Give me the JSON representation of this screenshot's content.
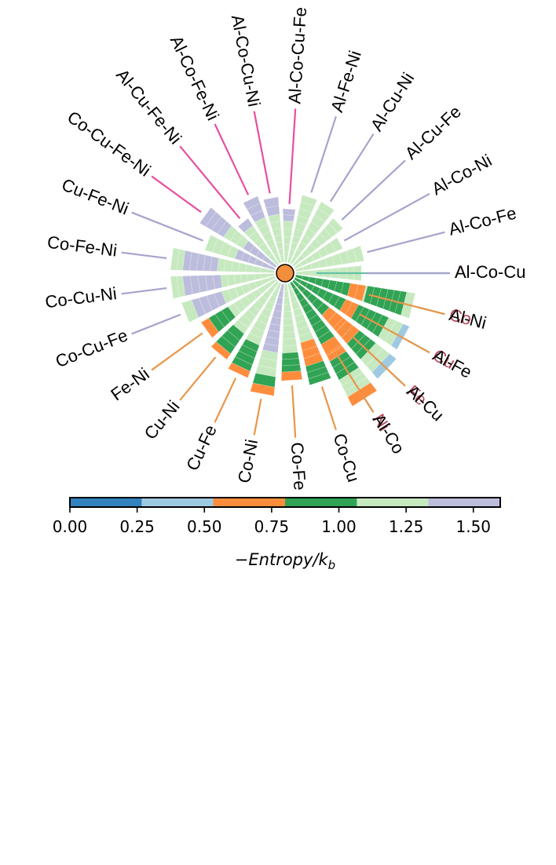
{
  "chart_data": {
    "type": "radial-stacked-bar",
    "colorbar": {
      "min": 0.0,
      "max": 1.6,
      "ticks": [
        "0.00",
        "0.25",
        "0.50",
        "0.75",
        "1.00",
        "1.25",
        "1.50"
      ],
      "tick_values": [
        0.0,
        0.25,
        0.5,
        0.75,
        1.0,
        1.25,
        1.5
      ],
      "title": "−Entropy/k",
      "title_sub": "b",
      "bins": [
        {
          "from": 0.0,
          "to": 0.267,
          "color": "#3182bd"
        },
        {
          "from": 0.267,
          "to": 0.533,
          "color": "#9ecae1"
        },
        {
          "from": 0.533,
          "to": 0.8,
          "color": "#fd8d3c"
        },
        {
          "from": 0.8,
          "to": 1.067,
          "color": "#31a354"
        },
        {
          "from": 1.067,
          "to": 1.333,
          "color": "#c7e9c0"
        },
        {
          "from": 1.333,
          "to": 1.6,
          "color": "#bcbddc"
        }
      ]
    },
    "spokes": [
      {
        "label": "Al",
        "angle": 0,
        "group": "unary",
        "segments": [
          [
            0,
            0
          ],
          [
            0.6,
            0.6
          ],
          [
            0.3,
            0
          ]
        ]
      },
      {
        "label": "Co",
        "angle": -14.4,
        "group": "unary",
        "segments": [
          [
            0,
            0
          ],
          [
            4.2,
            1.1
          ],
          [
            1.2,
            0.8
          ],
          [
            1.1,
            0.9
          ],
          [
            0.5,
            1.3
          ]
        ]
      },
      {
        "label": "Cu",
        "angle": -28.8,
        "group": "unary",
        "segments": [
          [
            0,
            0
          ],
          [
            3.2,
            1.1
          ],
          [
            1.5,
            0.8
          ],
          [
            1.2,
            0.8
          ],
          [
            0.9,
            1.3
          ],
          [
            0.4,
            0.5
          ]
        ]
      },
      {
        "label": "Fe",
        "angle": -43.2,
        "group": "unary",
        "segments": [
          [
            0,
            0
          ],
          [
            3.4,
            1.1
          ],
          [
            1.4,
            0.7
          ],
          [
            1.2,
            0.8
          ],
          [
            1.0,
            1.3
          ],
          [
            0.5,
            0.5
          ]
        ]
      },
      {
        "label": "Ni",
        "angle": -57.6,
        "group": "unary",
        "segments": [
          [
            0,
            0
          ],
          [
            3.6,
            1.1
          ],
          [
            1.5,
            0.7
          ],
          [
            1.2,
            0.8
          ],
          [
            1.1,
            1.3
          ],
          [
            0.6,
            0.6
          ]
        ]
      },
      {
        "label": "Co-Cu",
        "angle": -72.0,
        "group": "binary",
        "segments": [
          [
            0,
            0
          ],
          [
            3.5,
            1.1
          ],
          [
            1.4,
            0.7
          ],
          [
            1.1,
            0.8
          ]
        ]
      },
      {
        "label": "Co-Fe",
        "angle": -86.4,
        "group": "binary",
        "segments": [
          [
            0,
            0
          ],
          [
            4.0,
            1.2
          ],
          [
            1.1,
            0.8
          ],
          [
            0.5,
            0.6
          ]
        ]
      },
      {
        "label": "Co-Ni",
        "angle": -100.8,
        "group": "binary",
        "segments": [
          [
            0,
            0
          ],
          [
            4.0,
            1.4
          ],
          [
            1.4,
            1.1
          ],
          [
            0.6,
            0.8
          ],
          [
            0.5,
            0.6
          ]
        ]
      },
      {
        "label": "Cu-Fe",
        "angle": -115.2,
        "group": "binary",
        "segments": [
          [
            0,
            0
          ],
          [
            3.8,
            1.2
          ],
          [
            1.6,
            0.9
          ],
          [
            0.4,
            0.6
          ]
        ]
      },
      {
        "label": "Cu-Ni",
        "angle": -129.6,
        "group": "binary",
        "segments": [
          [
            0,
            0
          ],
          [
            3.6,
            1.2
          ],
          [
            1.4,
            0.9
          ],
          [
            0.4,
            0.6
          ]
        ]
      },
      {
        "label": "Fe-Ni",
        "angle": -144.0,
        "group": "binary",
        "segments": [
          [
            0,
            0
          ],
          [
            3.2,
            1.2
          ],
          [
            1.3,
            0.9
          ],
          [
            0.5,
            0.6
          ]
        ]
      },
      {
        "label": "Co-Cu-Fe",
        "angle": -158.4,
        "group": "ternary",
        "segments": [
          [
            0,
            0
          ],
          [
            3.2,
            1.2
          ],
          [
            1.8,
            1.4
          ],
          [
            0.6,
            1.2
          ]
        ]
      },
      {
        "label": "Co-Cu-Ni",
        "angle": -172.8,
        "group": "ternary",
        "segments": [
          [
            0,
            0
          ],
          [
            3.1,
            1.2
          ],
          [
            2.2,
            1.4
          ],
          [
            0.7,
            1.2
          ]
        ]
      },
      {
        "label": "Co-Fe-Ni",
        "angle": -187.2,
        "group": "ternary",
        "segments": [
          [
            0,
            0
          ],
          [
            3.3,
            1.2
          ],
          [
            2.0,
            1.4
          ],
          [
            0.7,
            1.2
          ]
        ]
      },
      {
        "label": "Cu-Fe-Ni",
        "angle": -201.6,
        "group": "ternary",
        "segments": [
          [
            0,
            0
          ],
          [
            2.4,
            1.4
          ],
          [
            1.8,
            1.2
          ]
        ]
      },
      {
        "label": "Co-Cu-Fe-Ni",
        "angle": -216.0,
        "group": "quaternary",
        "segments": [
          [
            0,
            0
          ],
          [
            2.2,
            1.4
          ],
          [
            1.3,
            1.2
          ],
          [
            1.6,
            1.4
          ]
        ]
      },
      {
        "label": "Al-Cu-Fe-Ni",
        "angle": -230.4,
        "group": "quaternary",
        "segments": [
          [
            0,
            0
          ],
          [
            0.7,
            1.1
          ],
          [
            2.0,
            1.2
          ],
          [
            0.5,
            1.4
          ]
        ]
      },
      {
        "label": "Al-Co-Fe-Ni",
        "angle": -244.8,
        "group": "quaternary",
        "segments": [
          [
            0,
            0
          ],
          [
            0.6,
            1.1
          ],
          [
            2.2,
            1.2
          ],
          [
            1.3,
            1.4
          ]
        ]
      },
      {
        "label": "Al-Co-Cu-Ni",
        "angle": -259.2,
        "group": "quaternary",
        "segments": [
          [
            0,
            0
          ],
          [
            0.8,
            1.1
          ],
          [
            2.0,
            1.2
          ],
          [
            1.0,
            1.4
          ]
        ]
      },
      {
        "label": "Al-Co-Cu-Fe",
        "angle": -273.6,
        "group": "quaternary",
        "segments": [
          [
            0,
            0
          ],
          [
            0.6,
            1.1
          ],
          [
            1.8,
            1.2
          ],
          [
            0.7,
            1.4
          ]
        ]
      },
      {
        "label": "Al-Fe-Ni",
        "angle": -288.0,
        "group": "ternary",
        "segments": [
          [
            0,
            0
          ],
          [
            1.2,
            1.1
          ],
          [
            2.8,
            1.2
          ]
        ]
      },
      {
        "label": "Al-Cu-Ni",
        "angle": -302.4,
        "group": "ternary",
        "segments": [
          [
            0,
            0
          ],
          [
            1.4,
            1.1
          ],
          [
            2.6,
            1.2
          ]
        ]
      },
      {
        "label": "Al-Cu-Fe",
        "angle": -316.8,
        "group": "ternary",
        "segments": [
          [
            0,
            0
          ],
          [
            1.2,
            1.1
          ],
          [
            2.4,
            1.2
          ]
        ]
      },
      {
        "label": "Al-Co-Ni",
        "angle": -331.2,
        "group": "ternary",
        "segments": [
          [
            0,
            0
          ],
          [
            1.2,
            1.1
          ],
          [
            1.8,
            1.2
          ]
        ]
      },
      {
        "label": "Al-Co-Fe",
        "angle": -345.6,
        "group": "ternary",
        "segments": [
          [
            0,
            0
          ],
          [
            1.4,
            1.1
          ],
          [
            2.6,
            1.2
          ]
        ]
      },
      {
        "label": "Al-Co-Cu",
        "angle": -360.0,
        "group": "ternary",
        "segments": [
          [
            0,
            0
          ],
          [
            1.2,
            1.1
          ],
          [
            2.6,
            1.2
          ]
        ]
      },
      {
        "label": "Al-Ni",
        "angle": -374.4,
        "group": "binary",
        "segments": [
          [
            0,
            0
          ],
          [
            3.2,
            1.0
          ],
          [
            0.9,
            0.7
          ]
        ]
      },
      {
        "label": "Al-Fe",
        "angle": -388.8,
        "group": "binary",
        "segments": [
          [
            0,
            0
          ],
          [
            3.2,
            1.0
          ],
          [
            0.8,
            0.7
          ]
        ]
      },
      {
        "label": "Al-Cu",
        "angle": -403.2,
        "group": "binary",
        "segments": [
          [
            0,
            0
          ],
          [
            2.6,
            1.0
          ],
          [
            1.0,
            0.7
          ]
        ]
      },
      {
        "label": "Al-Co",
        "angle": -417.6,
        "group": "binary",
        "segments": [
          [
            0,
            0
          ],
          [
            4.0,
            1.0
          ],
          [
            0.6,
            0.7
          ]
        ]
      }
    ],
    "group_colors": {
      "unary": "#66c2a5",
      "binary": "#e8964a",
      "ternary": "#a6a3cc",
      "quaternary": "#e7509e"
    },
    "unary_label_color": "#b5475b",
    "other_label_color": "#000000",
    "center_color": "#f28e3c"
  }
}
